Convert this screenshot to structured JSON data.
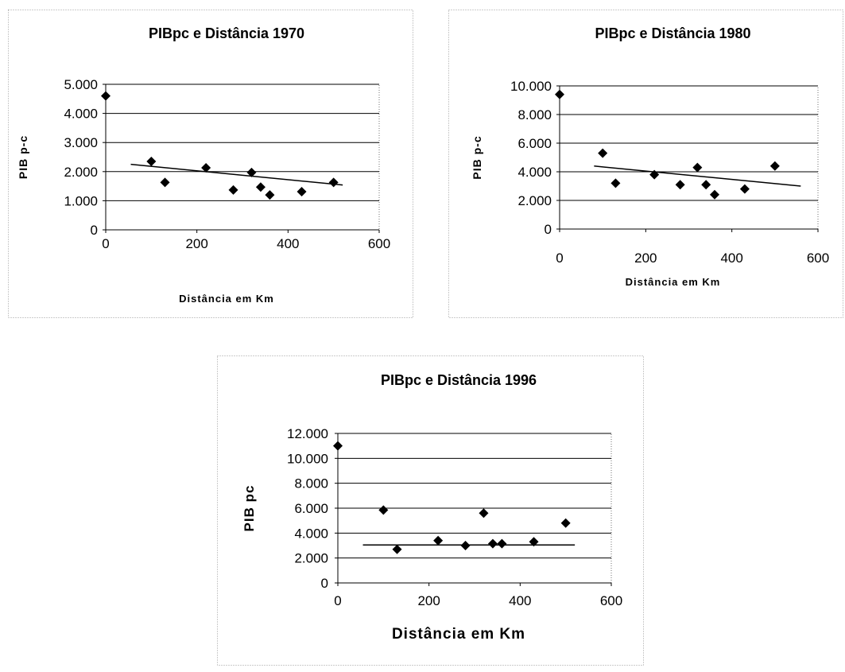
{
  "chart_data": [
    {
      "type": "scatter",
      "title": "PIBpc e Distância 1970",
      "xlabel": "Distância em Km",
      "ylabel": "PIB p-c",
      "xlim": [
        0,
        600
      ],
      "ylim": [
        0,
        5000
      ],
      "x_ticks": [
        "0",
        "200",
        "400",
        "600"
      ],
      "y_ticks": [
        "0",
        "1.000",
        "2.000",
        "3.000",
        "4.000",
        "5.000"
      ],
      "grid": true,
      "series": [
        {
          "points": [
            {
              "x": 0,
              "y": 4600
            },
            {
              "x": 100,
              "y": 2350
            },
            {
              "x": 130,
              "y": 1630
            },
            {
              "x": 220,
              "y": 2130
            },
            {
              "x": 280,
              "y": 1370
            },
            {
              "x": 320,
              "y": 1970
            },
            {
              "x": 340,
              "y": 1470
            },
            {
              "x": 360,
              "y": 1200
            },
            {
              "x": 430,
              "y": 1310
            },
            {
              "x": 500,
              "y": 1630
            }
          ]
        }
      ],
      "trendline": [
        {
          "x": 55,
          "y": 2250
        },
        {
          "x": 520,
          "y": 1540
        }
      ]
    },
    {
      "type": "scatter",
      "title": "PIBpc e Distância 1980",
      "xlabel": "Distância em Km",
      "ylabel": "PIB p-c",
      "xlim": [
        0,
        600
      ],
      "ylim": [
        0,
        10000
      ],
      "x_ticks": [
        "0",
        "200",
        "400",
        "600"
      ],
      "y_ticks": [
        "0",
        "2.000",
        "4.000",
        "6.000",
        "8.000",
        "10.000"
      ],
      "grid": true,
      "series": [
        {
          "points": [
            {
              "x": 0,
              "y": 9400
            },
            {
              "x": 100,
              "y": 5300
            },
            {
              "x": 130,
              "y": 3200
            },
            {
              "x": 220,
              "y": 3800
            },
            {
              "x": 280,
              "y": 3100
            },
            {
              "x": 320,
              "y": 4300
            },
            {
              "x": 340,
              "y": 3100
            },
            {
              "x": 360,
              "y": 2400
            },
            {
              "x": 430,
              "y": 2800
            },
            {
              "x": 500,
              "y": 4400
            }
          ]
        }
      ],
      "trendline": [
        {
          "x": 80,
          "y": 4400
        },
        {
          "x": 560,
          "y": 3000
        }
      ]
    },
    {
      "type": "scatter",
      "title": "PIBpc e Distância 1996",
      "xlabel": "Distância em Km",
      "ylabel": "PIB pc",
      "xlim": [
        0,
        600
      ],
      "ylim": [
        0,
        12000
      ],
      "x_ticks": [
        "0",
        "200",
        "400",
        "600"
      ],
      "y_ticks": [
        "0",
        "2.000",
        "4.000",
        "6.000",
        "8.000",
        "10.000",
        "12.000"
      ],
      "grid": true,
      "series": [
        {
          "points": [
            {
              "x": 0,
              "y": 11000
            },
            {
              "x": 100,
              "y": 5850
            },
            {
              "x": 130,
              "y": 2700
            },
            {
              "x": 220,
              "y": 3400
            },
            {
              "x": 280,
              "y": 3000
            },
            {
              "x": 320,
              "y": 5600
            },
            {
              "x": 340,
              "y": 3150
            },
            {
              "x": 360,
              "y": 3150
            },
            {
              "x": 430,
              "y": 3300
            },
            {
              "x": 500,
              "y": 4800
            }
          ]
        }
      ],
      "trendline": [
        {
          "x": 55,
          "y": 3050
        },
        {
          "x": 520,
          "y": 3050
        }
      ]
    }
  ]
}
